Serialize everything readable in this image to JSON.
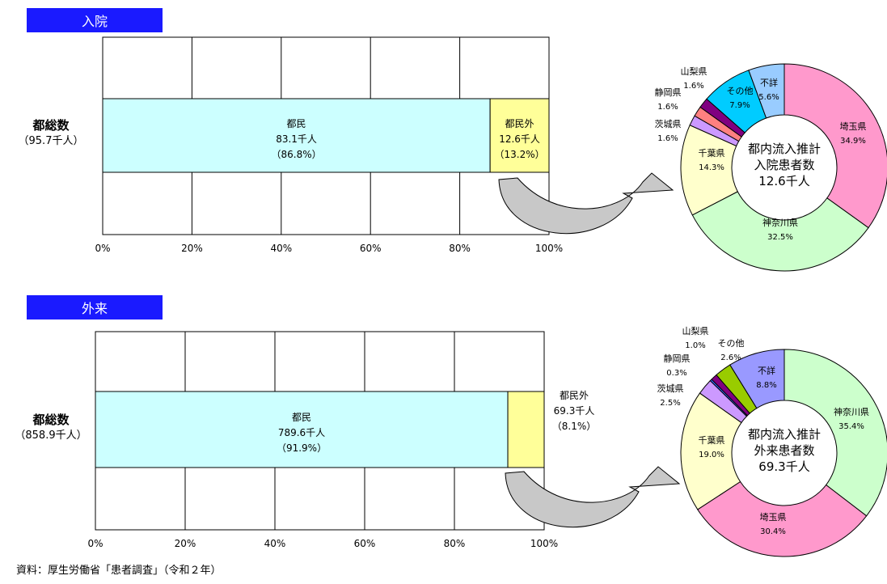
{
  "source_note": "資料：厚生労働省「患者調査」（令和２年）",
  "colors": {
    "header_bg": "#1a1aff",
    "resident_fill": "#ccffff",
    "nonresident_fill": "#ffff99",
    "arrow_fill": "#c8c8c8",
    "saitama": "#ff99cc",
    "kanagawa": "#ccffcc",
    "chiba": "#ffffcc",
    "ibaraki": "#cc99ff",
    "shizuoka": "#ff8080",
    "yamanashi": "#800080",
    "sonota_in": "#00ccff",
    "fusho_in": "#99ccff",
    "shizuoka_out": "#3366ff",
    "sonota_out": "#99cc00",
    "fusho_out": "#9999ff"
  },
  "chart_data": [
    {
      "type": "bar",
      "section_label": "入院",
      "total_label": "都総数",
      "total_value": "（95.7千人）",
      "ylim": [
        0,
        100
      ],
      "x_ticks": [
        "0%",
        "20%",
        "40%",
        "60%",
        "80%",
        "100%"
      ],
      "series": [
        {
          "name": "都民",
          "value": 86.8,
          "label_lines": [
            "都民",
            "83.1千人",
            "（86.8%）"
          ]
        },
        {
          "name": "都民外",
          "value": 13.2,
          "label_lines": [
            "都民外",
            "12.6千人",
            "（13.2%）"
          ]
        }
      ]
    },
    {
      "type": "pie",
      "center_lines": [
        "都内流入推計",
        "入院患者数",
        "12.6千人"
      ],
      "slices": [
        {
          "name": "埼玉県",
          "value": 34.9,
          "label": "34.9%",
          "color_key": "saitama"
        },
        {
          "name": "神奈川県",
          "value": 32.5,
          "label": "32.5%",
          "color_key": "kanagawa"
        },
        {
          "name": "千葉県",
          "value": 14.3,
          "label": "14.3%",
          "color_key": "chiba"
        },
        {
          "name": "茨城県",
          "value": 1.6,
          "label": "1.6%",
          "color_key": "ibaraki"
        },
        {
          "name": "静岡県",
          "value": 1.6,
          "label": "1.6%",
          "color_key": "shizuoka"
        },
        {
          "name": "山梨県",
          "value": 1.6,
          "label": "1.6%",
          "color_key": "yamanashi"
        },
        {
          "name": "その他",
          "value": 7.9,
          "label": "7.9%",
          "color_key": "sonota_in"
        },
        {
          "name": "不詳",
          "value": 5.6,
          "label": "5.6%",
          "color_key": "fusho_in"
        }
      ]
    },
    {
      "type": "bar",
      "section_label": "外来",
      "total_label": "都総数",
      "total_value": "（858.9千人）",
      "ylim": [
        0,
        100
      ],
      "x_ticks": [
        "0%",
        "20%",
        "40%",
        "60%",
        "80%",
        "100%"
      ],
      "series": [
        {
          "name": "都民",
          "value": 91.9,
          "label_lines": [
            "都民",
            "789.6千人",
            "（91.9%）"
          ]
        },
        {
          "name": "都民外",
          "value": 8.1,
          "label_lines": [
            "都民外",
            "69.3千人",
            "（8.1%）"
          ]
        }
      ]
    },
    {
      "type": "pie",
      "center_lines": [
        "都内流入推計",
        "外来患者数",
        "69.3千人"
      ],
      "slices": [
        {
          "name": "神奈川県",
          "value": 35.4,
          "label": "35.4%",
          "color_key": "kanagawa"
        },
        {
          "name": "埼玉県",
          "value": 30.4,
          "label": "30.4%",
          "color_key": "saitama"
        },
        {
          "name": "千葉県",
          "value": 19.0,
          "label": "19.0%",
          "color_key": "chiba"
        },
        {
          "name": "茨城県",
          "value": 2.5,
          "label": "2.5%",
          "color_key": "ibaraki"
        },
        {
          "name": "静岡県",
          "value": 0.3,
          "label": "0.3%",
          "color_key": "shizuoka_out"
        },
        {
          "name": "山梨県",
          "value": 1.0,
          "label": "1.0%",
          "color_key": "yamanashi"
        },
        {
          "name": "その他",
          "value": 2.6,
          "label": "2.6%",
          "color_key": "sonota_out"
        },
        {
          "name": "不詳",
          "value": 8.8,
          "label": "8.8%",
          "color_key": "fusho_out"
        }
      ]
    }
  ]
}
